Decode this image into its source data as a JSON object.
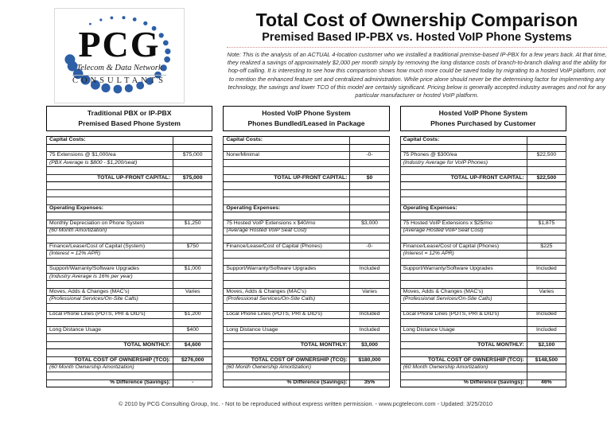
{
  "logo": {
    "acronym": "PCG",
    "tagline": "Telecom & Data Network",
    "subtext": "CONSULTANTS",
    "dot_color": "#2d5fa6"
  },
  "header": {
    "title": "Total Cost of Ownership Comparison",
    "subtitle": "Premised Based IP-PBX vs. Hosted VoIP Phone Systems",
    "note": "Note: This is the analysis of an ACTUAL 4-location customer who we installed a traditional premise-based IP-PBX for a few years back. At that time, they realized a savings of approximately $2,000 per month simply by removing the long distance costs of branch-to-branch dialing and the ability for hop-off calling. It is interesting to see how this comparison shows how much more could be saved today by migrating to a hosted VoIP platform, not to mention the enhanced feature set and centralized administration. While price alone should never be the determining factor for implementing any technology, the savings and lower TCO of this model are certainly significant. Pricing below is generally accepted industry averages and not for any particular manufacturer or hosted VoIP platform."
  },
  "colors": {
    "logo_blue": "#2d5fa6",
    "divider_red": "#d98c8c",
    "border_black": "#000000"
  },
  "columns": [
    {
      "title_line1": "Traditional PBX or IP-PBX",
      "title_line2": "Premised Based Phone System",
      "rows": [
        [
          "Capital Costs:",
          "",
          "sec"
        ],
        [
          "",
          "",
          ""
        ],
        [
          "75 Extensions @ $1,000/ea",
          "$75,000",
          ""
        ],
        [
          "(PBX Average is $800 - $1,200/seat)",
          "",
          "it"
        ],
        [
          "",
          "",
          ""
        ],
        [
          "TOTAL UP-FRONT CAPITAL:",
          "$75,000",
          "tot"
        ],
        [
          "",
          "",
          ""
        ],
        [
          "",
          "",
          ""
        ],
        [
          "",
          "",
          ""
        ],
        [
          "Operating Expenses:",
          "",
          "sec"
        ],
        [
          "",
          "",
          ""
        ],
        [
          "Monthly Depreciation on Phone System",
          "$1,250",
          ""
        ],
        [
          "(60 Month Amortization)",
          "",
          "it"
        ],
        [
          "",
          "",
          ""
        ],
        [
          "Finance/Lease/Cost of Capital (System)",
          "$750",
          ""
        ],
        [
          "(Interest = 12% APR)",
          "",
          "it"
        ],
        [
          "",
          "",
          ""
        ],
        [
          "Support/Warranty/Software Upgrades",
          "$1,000",
          ""
        ],
        [
          "(Industry Average is 16% per year)",
          "",
          "it"
        ],
        [
          "",
          "",
          ""
        ],
        [
          "Moves, Adds & Changes (MAC's)",
          "Varies",
          ""
        ],
        [
          "(Professional Services/On-Site Calls)",
          "",
          "it"
        ],
        [
          "",
          "",
          ""
        ],
        [
          "Local Phone Lines (POTS, PRI & DID's)",
          "$1,200",
          ""
        ],
        [
          "",
          "",
          ""
        ],
        [
          "Long Distance Usage",
          "$400",
          ""
        ],
        [
          "",
          "",
          ""
        ],
        [
          "TOTAL MONTHLY:",
          "$4,600",
          "tot"
        ],
        [
          "",
          "",
          ""
        ],
        [
          "TOTAL COST OF OWNERSHIP (TCO):",
          "$276,000",
          "tot"
        ],
        [
          "(60 Month Ownership Amortization)",
          "",
          "it"
        ],
        [
          "",
          "",
          ""
        ],
        [
          "% Difference (Savings):",
          "-",
          "tot"
        ]
      ]
    },
    {
      "title_line1": "Hosted VoIP Phone System",
      "title_line2": "Phones Bundled/Leased in Package",
      "rows": [
        [
          "Capital Costs:",
          "",
          "sec"
        ],
        [
          "",
          "",
          ""
        ],
        [
          "None/Minimal",
          "-0-",
          ""
        ],
        [
          "",
          "",
          ""
        ],
        [
          "",
          "",
          ""
        ],
        [
          "TOTAL UP-FRONT CAPITAL:",
          "$0",
          "tot"
        ],
        [
          "",
          "",
          ""
        ],
        [
          "",
          "",
          ""
        ],
        [
          "",
          "",
          ""
        ],
        [
          "Operating Expenses:",
          "",
          "sec"
        ],
        [
          "",
          "",
          ""
        ],
        [
          "75 Hosted VoIP Extensions x $40/mo",
          "$3,000",
          ""
        ],
        [
          "(Average Hosted VoIP Seat Cost)",
          "",
          "it"
        ],
        [
          "",
          "",
          ""
        ],
        [
          "Finance/Lease/Cost of Capital (Phones)",
          "-0-",
          ""
        ],
        [
          "",
          "",
          ""
        ],
        [
          "",
          "",
          ""
        ],
        [
          "Support/Warranty/Software Upgrades",
          "Included",
          ""
        ],
        [
          "",
          "",
          ""
        ],
        [
          "",
          "",
          ""
        ],
        [
          "Moves, Adds & Changes (MAC's)",
          "Varies",
          ""
        ],
        [
          "(Professional Services/On-Site Calls)",
          "",
          "it"
        ],
        [
          "",
          "",
          ""
        ],
        [
          "Local Phone Lines (POTS, PRI & DID's)",
          "Included",
          ""
        ],
        [
          "",
          "",
          ""
        ],
        [
          "Long Distance Usage",
          "Included",
          ""
        ],
        [
          "",
          "",
          ""
        ],
        [
          "TOTAL MONTHLY:",
          "$3,000",
          "tot"
        ],
        [
          "",
          "",
          ""
        ],
        [
          "TOTAL COST OF OWNERSHIP (TCO):",
          "$180,000",
          "tot"
        ],
        [
          "(60 Month Ownership Amortization)",
          "",
          "it"
        ],
        [
          "",
          "",
          ""
        ],
        [
          "% Difference (Savings):",
          "35%",
          "tot"
        ]
      ]
    },
    {
      "title_line1": "Hosted VoIP Phone System",
      "title_line2": "Phones Purchased by Customer",
      "rows": [
        [
          "Capital Costs:",
          "",
          "sec"
        ],
        [
          "",
          "",
          ""
        ],
        [
          "75 Phones @ $300/ea",
          "$22,500",
          ""
        ],
        [
          "(Industry Average for VoIP Phones)",
          "",
          "it"
        ],
        [
          "",
          "",
          ""
        ],
        [
          "TOTAL UP-FRONT CAPITAL:",
          "$22,500",
          "tot"
        ],
        [
          "",
          "",
          ""
        ],
        [
          "",
          "",
          ""
        ],
        [
          "",
          "",
          ""
        ],
        [
          "Operating Expenses:",
          "",
          "sec"
        ],
        [
          "",
          "",
          ""
        ],
        [
          "75 Hosted VoIP Extensions x $25/mo",
          "$1,875",
          ""
        ],
        [
          "(Average Hosted VoIP Seat Cost)",
          "",
          "it"
        ],
        [
          "",
          "",
          ""
        ],
        [
          "Finance/Lease/Cost of Capital (Phones)",
          "$225",
          ""
        ],
        [
          "(Interest = 12% APR)",
          "",
          "it"
        ],
        [
          "",
          "",
          ""
        ],
        [
          "Support/Warranty/Software Upgrades",
          "Included",
          ""
        ],
        [
          "",
          "",
          ""
        ],
        [
          "",
          "",
          ""
        ],
        [
          "Moves, Adds & Changes (MAC's)",
          "Varies",
          ""
        ],
        [
          "(Professional Services/On-Site Calls)",
          "",
          "it"
        ],
        [
          "",
          "",
          ""
        ],
        [
          "Local Phone Lines (POTS, PRI & DID's)",
          "Included",
          ""
        ],
        [
          "",
          "",
          ""
        ],
        [
          "Long Distance Usage",
          "Included",
          ""
        ],
        [
          "",
          "",
          ""
        ],
        [
          "TOTAL MONTHLY:",
          "$2,100",
          "tot"
        ],
        [
          "",
          "",
          ""
        ],
        [
          "TOTAL COST OF OWNERSHIP (TCO):",
          "$148,500",
          "tot"
        ],
        [
          "(60 Month Ownership Amortization)",
          "",
          "it"
        ],
        [
          "",
          "",
          ""
        ],
        [
          "% Difference (Savings):",
          "46%",
          "tot"
        ]
      ]
    }
  ],
  "footer": {
    "text": "© 2010 by PCG Consulting Group, Inc. - Not to be reproduced without express written permission. - www.pcgtelecom.com - Updated: 3/25/2010"
  }
}
